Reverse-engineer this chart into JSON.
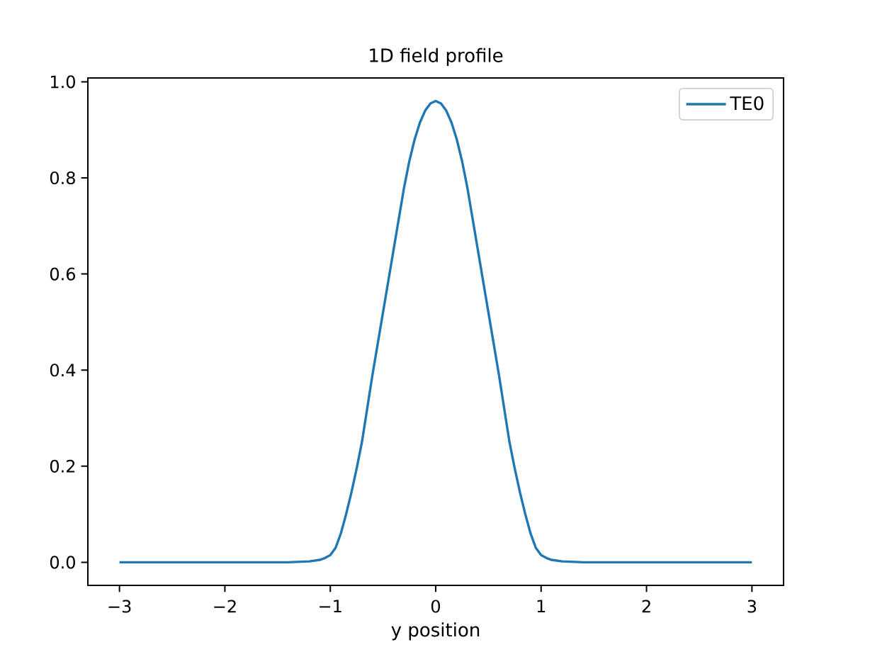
{
  "chart_data": {
    "type": "line",
    "title": "1D field profile",
    "xlabel": "y position",
    "x": [
      -3.0,
      -2.5,
      -2.0,
      -1.6,
      -1.4,
      -1.2,
      -1.1,
      -1.05,
      -1.0,
      -0.95,
      -0.9,
      -0.85,
      -0.8,
      -0.75,
      -0.7,
      -0.6,
      -0.5,
      -0.4,
      -0.3,
      -0.25,
      -0.2,
      -0.15,
      -0.1,
      -0.05,
      0.0,
      0.05,
      0.1,
      0.15,
      0.2,
      0.25,
      0.3,
      0.4,
      0.5,
      0.6,
      0.7,
      0.75,
      0.8,
      0.85,
      0.9,
      0.95,
      1.0,
      1.05,
      1.1,
      1.2,
      1.4,
      1.6,
      2.0,
      2.5,
      3.0
    ],
    "series": [
      {
        "name": "TE0",
        "color": "#1f77b4",
        "values": [
          0,
          0,
          0,
          0,
          0,
          0.002,
          0.005,
          0.009,
          0.015,
          0.03,
          0.06,
          0.1,
          0.145,
          0.195,
          0.25,
          0.39,
          0.52,
          0.65,
          0.78,
          0.835,
          0.88,
          0.915,
          0.94,
          0.955,
          0.96,
          0.955,
          0.94,
          0.915,
          0.88,
          0.835,
          0.78,
          0.65,
          0.52,
          0.39,
          0.25,
          0.195,
          0.145,
          0.1,
          0.06,
          0.03,
          0.015,
          0.009,
          0.005,
          0.002,
          0,
          0,
          0,
          0,
          0
        ]
      }
    ],
    "xlim": [
      -3.3,
      3.3
    ],
    "ylim": [
      -0.048,
      1.008
    ],
    "xticks": [
      {
        "value": -3,
        "label": "−3"
      },
      {
        "value": -2,
        "label": "−2"
      },
      {
        "value": -1,
        "label": "−1"
      },
      0,
      1,
      2,
      3
    ],
    "yticks": [
      {
        "value": 0,
        "label": "0.0"
      },
      {
        "value": 0.2,
        "label": "0.2"
      },
      {
        "value": 0.4,
        "label": "0.4"
      },
      {
        "value": 0.6,
        "label": "0.6"
      },
      {
        "value": 0.8,
        "label": "0.8"
      },
      {
        "value": 1,
        "label": "1.0"
      }
    ],
    "legend": "top right",
    "marker": "none",
    "line_style": "solid"
  }
}
